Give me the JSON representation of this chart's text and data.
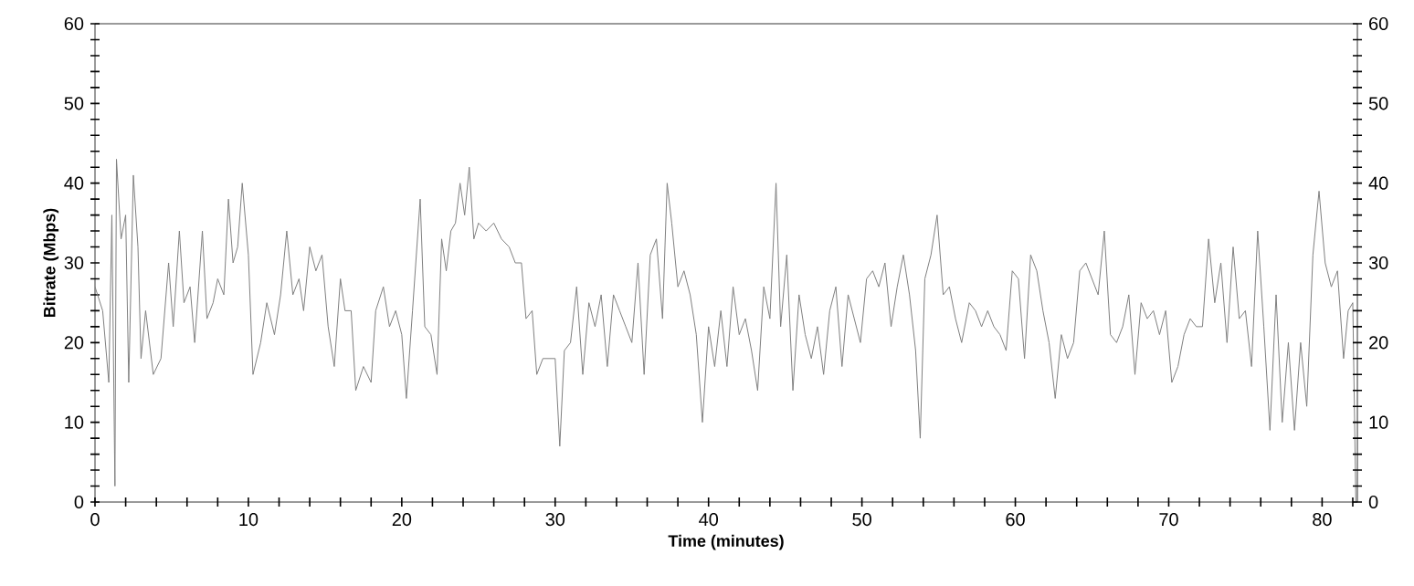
{
  "chart_data": {
    "type": "line",
    "xlabel": "Time (minutes)",
    "ylabel": "Bitrate (Mbps)",
    "xlim": [
      0,
      82.3
    ],
    "ylim": [
      0,
      60
    ],
    "y2lim": [
      0,
      60
    ],
    "xticks": [
      0,
      {
        "value": 2,
        "label": null
      },
      {
        "value": 4,
        "label": null
      },
      {
        "value": 6,
        "label": null
      },
      {
        "value": 8,
        "label": null
      },
      10,
      {
        "value": 12,
        "label": null
      },
      {
        "value": 14,
        "label": null
      },
      {
        "value": 16,
        "label": null
      },
      {
        "value": 18,
        "label": null
      },
      20,
      {
        "value": 22,
        "label": null
      },
      {
        "value": 24,
        "label": null
      },
      {
        "value": 26,
        "label": null
      },
      {
        "value": 28,
        "label": null
      },
      30,
      {
        "value": 32,
        "label": null
      },
      {
        "value": 34,
        "label": null
      },
      {
        "value": 36,
        "label": null
      },
      {
        "value": 38,
        "label": null
      },
      40,
      {
        "value": 42,
        "label": null
      },
      {
        "value": 44,
        "label": null
      },
      {
        "value": 46,
        "label": null
      },
      {
        "value": 48,
        "label": null
      },
      50,
      {
        "value": 52,
        "label": null
      },
      {
        "value": 54,
        "label": null
      },
      {
        "value": 56,
        "label": null
      },
      {
        "value": 58,
        "label": null
      },
      60,
      {
        "value": 62,
        "label": null
      },
      {
        "value": 64,
        "label": null
      },
      {
        "value": 66,
        "label": null
      },
      {
        "value": 68,
        "label": null
      },
      70,
      {
        "value": 72,
        "label": null
      },
      {
        "value": 74,
        "label": null
      },
      {
        "value": 76,
        "label": null
      },
      {
        "value": 78,
        "label": null
      },
      80,
      {
        "value": 82,
        "label": null
      }
    ],
    "yticks": [
      0,
      {
        "value": 2,
        "label": null
      },
      {
        "value": 4,
        "label": null
      },
      {
        "value": 6,
        "label": null
      },
      {
        "value": 8,
        "label": null
      },
      10,
      {
        "value": 12,
        "label": null
      },
      {
        "value": 14,
        "label": null
      },
      {
        "value": 16,
        "label": null
      },
      {
        "value": 18,
        "label": null
      },
      20,
      {
        "value": 22,
        "label": null
      },
      {
        "value": 24,
        "label": null
      },
      {
        "value": 26,
        "label": null
      },
      {
        "value": 28,
        "label": null
      },
      30,
      {
        "value": 32,
        "label": null
      },
      {
        "value": 34,
        "label": null
      },
      {
        "value": 36,
        "label": null
      },
      {
        "value": 38,
        "label": null
      },
      40,
      {
        "value": 42,
        "label": null
      },
      {
        "value": 44,
        "label": null
      },
      {
        "value": 46,
        "label": null
      },
      {
        "value": 48,
        "label": null
      },
      50,
      {
        "value": 52,
        "label": null
      },
      {
        "value": 54,
        "label": null
      },
      {
        "value": 56,
        "label": null
      },
      {
        "value": 58,
        "label": null
      },
      60
    ],
    "y2ticks": [
      0,
      {
        "value": 2,
        "label": null
      },
      {
        "value": 4,
        "label": null
      },
      {
        "value": 6,
        "label": null
      },
      {
        "value": 8,
        "label": null
      },
      10,
      {
        "value": 12,
        "label": null
      },
      {
        "value": 14,
        "label": null
      },
      {
        "value": 16,
        "label": null
      },
      {
        "value": 18,
        "label": null
      },
      20,
      {
        "value": 22,
        "label": null
      },
      {
        "value": 24,
        "label": null
      },
      {
        "value": 26,
        "label": null
      },
      {
        "value": 28,
        "label": null
      },
      30,
      {
        "value": 32,
        "label": null
      },
      {
        "value": 34,
        "label": null
      },
      {
        "value": 36,
        "label": null
      },
      {
        "value": 38,
        "label": null
      },
      40,
      {
        "value": 42,
        "label": null
      },
      {
        "value": 44,
        "label": null
      },
      {
        "value": 46,
        "label": null
      },
      {
        "value": 48,
        "label": null
      },
      50,
      {
        "value": 52,
        "label": null
      },
      {
        "value": 54,
        "label": null
      },
      {
        "value": 56,
        "label": null
      },
      {
        "value": 58,
        "label": null
      },
      60
    ],
    "grid": false,
    "marker": "none",
    "line_style": "solid",
    "series": [
      {
        "color": "#808080",
        "x": [
          0,
          0.5,
          0.9,
          1.1,
          1.3,
          1.4,
          1.7,
          2.0,
          2.2,
          2.5,
          2.8,
          3.0,
          3.3,
          3.8,
          4.3,
          4.8,
          5.1,
          5.5,
          5.8,
          6.2,
          6.5,
          7.0,
          7.3,
          7.7,
          8.0,
          8.4,
          8.7,
          9.0,
          9.3,
          9.6,
          10.0,
          10.3,
          10.8,
          11.2,
          11.7,
          12.1,
          12.5,
          12.9,
          13.3,
          13.6,
          14.0,
          14.4,
          14.8,
          15.2,
          15.6,
          16.0,
          16.3,
          16.7,
          17.0,
          17.5,
          18.0,
          18.3,
          18.8,
          19.2,
          19.6,
          20.0,
          20.3,
          20.7,
          21.2,
          21.5,
          21.9,
          22.3,
          22.6,
          22.9,
          23.2,
          23.5,
          23.8,
          24.1,
          24.4,
          24.7,
          25.0,
          25.5,
          26.0,
          26.5,
          27.0,
          27.4,
          27.8,
          28.1,
          28.5,
          28.8,
          29.2,
          29.6,
          30.0,
          30.3,
          30.6,
          31.0,
          31.4,
          31.8,
          32.2,
          32.6,
          33.0,
          33.4,
          33.8,
          34.2,
          34.6,
          35.0,
          35.4,
          35.8,
          36.2,
          36.6,
          37.0,
          37.3,
          37.6,
          38.0,
          38.4,
          38.8,
          39.2,
          39.6,
          40.0,
          40.4,
          40.8,
          41.2,
          41.6,
          42.0,
          42.4,
          42.8,
          43.2,
          43.6,
          44.0,
          44.4,
          44.7,
          45.1,
          45.5,
          45.9,
          46.3,
          46.7,
          47.1,
          47.5,
          47.9,
          48.3,
          48.7,
          49.1,
          49.5,
          49.9,
          50.3,
          50.7,
          51.1,
          51.5,
          51.9,
          52.3,
          52.7,
          53.1,
          53.5,
          53.8,
          54.1,
          54.5,
          54.9,
          55.3,
          55.7,
          56.1,
          56.5,
          57.0,
          57.4,
          57.8,
          58.2,
          58.6,
          59.0,
          59.4,
          59.8,
          60.2,
          60.6,
          61.0,
          61.4,
          61.8,
          62.2,
          62.6,
          63.0,
          63.4,
          63.8,
          64.2,
          64.6,
          65.0,
          65.4,
          65.8,
          66.2,
          66.6,
          67.0,
          67.4,
          67.8,
          68.2,
          68.6,
          69.0,
          69.4,
          69.8,
          70.2,
          70.6,
          71.0,
          71.4,
          71.8,
          72.2,
          72.6,
          73.0,
          73.4,
          73.8,
          74.2,
          74.6,
          75.0,
          75.4,
          75.8,
          76.2,
          76.6,
          77.0,
          77.4,
          77.8,
          78.2,
          78.6,
          79.0,
          79.4,
          79.8,
          80.2,
          80.6,
          81.0,
          81.4,
          81.7,
          82.0,
          82.2
        ],
        "values": [
          27,
          24,
          15,
          36,
          2,
          43,
          33,
          36,
          15,
          41,
          32,
          18,
          24,
          16,
          18,
          30,
          22,
          34,
          25,
          27,
          20,
          34,
          23,
          25,
          28,
          26,
          38,
          30,
          32,
          40,
          31,
          16,
          20,
          25,
          21,
          26,
          34,
          26,
          28,
          24,
          32,
          29,
          31,
          22,
          17,
          28,
          24,
          24,
          14,
          17,
          15,
          24,
          27,
          22,
          24,
          21,
          13,
          24,
          38,
          22,
          21,
          16,
          33,
          29,
          34,
          35,
          40,
          36,
          42,
          33,
          35,
          34,
          35,
          33,
          32,
          30,
          30,
          23,
          24,
          16,
          18,
          18,
          18,
          7,
          19,
          20,
          27,
          16,
          25,
          22,
          26,
          17,
          26,
          24,
          22,
          20,
          30,
          16,
          31,
          33,
          23,
          40,
          35,
          27,
          29,
          26,
          21,
          10,
          22,
          17,
          24,
          17,
          27,
          21,
          23,
          19,
          14,
          27,
          23,
          40,
          22,
          31,
          14,
          26,
          21,
          18,
          22,
          16,
          24,
          27,
          17,
          26,
          23,
          20,
          28,
          29,
          27,
          30,
          22,
          27,
          31,
          26,
          19,
          8,
          28,
          31,
          36,
          26,
          27,
          23,
          20,
          25,
          24,
          22,
          24,
          22,
          21,
          19,
          29,
          28,
          18,
          31,
          29,
          24,
          20,
          13,
          21,
          18,
          20,
          29,
          30,
          28,
          26,
          34,
          21,
          20,
          22,
          26,
          16,
          25,
          23,
          24,
          21,
          24,
          15,
          17,
          21,
          23,
          22,
          22,
          33,
          25,
          30,
          20,
          32,
          23,
          24,
          17,
          34,
          22,
          9,
          26,
          10,
          20,
          9,
          20,
          12,
          31,
          39,
          30,
          27,
          29,
          18,
          24,
          25,
          0
        ]
      }
    ]
  }
}
